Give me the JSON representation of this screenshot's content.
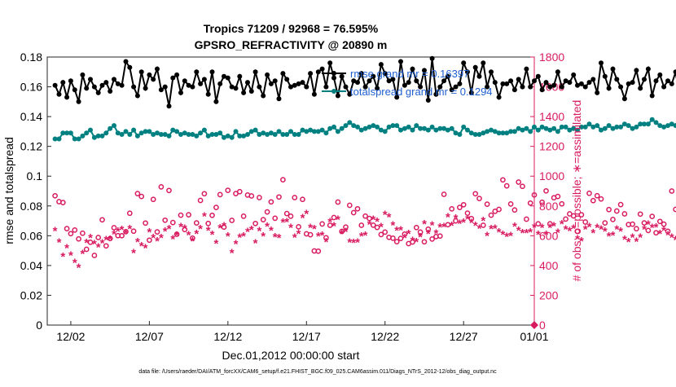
{
  "chart_data": {
    "type": "line",
    "title_line1": "Tropics 71209 / 92968 = 76.595%",
    "title_line2": "GPSRO_REFRACTIVITY @ 20890 m",
    "xlabel": "Dec.01,2012 00:00:00 start",
    "ylabel_left": "rmse and totalspread",
    "ylabel_right": "# of obs: o=possible; ∗=assimilated",
    "footer": "data file: /Users/raeder/DAI/ATM_forcXX/CAM6_setup/f.e21.FHIST_BGC.f09_025.CAM6assim.011/Diags_NTrS_2012-12/obs_diag_output.nc",
    "x_range": [
      0.5,
      31.5
    ],
    "x_ticks": [
      {
        "value": 2,
        "label": "12/02"
      },
      {
        "value": 7,
        "label": "12/07"
      },
      {
        "value": 12,
        "label": "12/12"
      },
      {
        "value": 17,
        "label": "12/17"
      },
      {
        "value": 22,
        "label": "12/22"
      },
      {
        "value": 27,
        "label": "12/27"
      },
      {
        "value": 32,
        "label": "01/01"
      }
    ],
    "y_left_range": [
      0,
      0.18
    ],
    "y_left_ticks": [
      "0",
      "0.02",
      "0.04",
      "0.06",
      "0.08",
      "0.1",
      "0.12",
      "0.14",
      "0.16",
      "0.18"
    ],
    "y_right_range": [
      0,
      1800
    ],
    "y_right_ticks": [
      "0",
      "200",
      "400",
      "600",
      "800",
      "1000",
      "1200",
      "1400",
      "1600",
      "1800"
    ],
    "legend": [
      {
        "label": "rmse grand mr = 0.16397",
        "color": "#000000"
      },
      {
        "label": "totalspread grand mr = 0.1294",
        "color": "#008080"
      }
    ],
    "colors": {
      "rmse": "#000000",
      "spread": "#008080",
      "obs": "#d81b60",
      "axes": "#262626"
    },
    "samples_per_day": 4,
    "rmse": [
      0.161,
      0.155,
      0.163,
      0.153,
      0.164,
      0.158,
      0.15,
      0.168,
      0.159,
      0.165,
      0.16,
      0.156,
      0.161,
      0.163,
      0.157,
      0.165,
      0.162,
      0.161,
      0.177,
      0.173,
      0.16,
      0.154,
      0.17,
      0.159,
      0.168,
      0.165,
      0.172,
      0.158,
      0.16,
      0.147,
      0.166,
      0.168,
      0.156,
      0.164,
      0.161,
      0.16,
      0.17,
      0.162,
      0.165,
      0.155,
      0.17,
      0.15,
      0.162,
      0.167,
      0.166,
      0.16,
      0.159,
      0.167,
      0.156,
      0.163,
      0.157,
      0.17,
      0.16,
      0.154,
      0.168,
      0.162,
      0.164,
      0.152,
      0.169,
      0.165,
      0.16,
      0.161,
      0.162,
      0.163,
      0.16,
      0.169,
      0.155,
      0.17,
      0.172,
      0.16,
      0.176,
      0.166,
      0.154,
      0.167,
      0.16,
      0.155,
      0.164,
      0.163,
      0.169,
      0.16,
      0.164,
      0.167,
      0.159,
      0.175,
      0.169,
      0.164,
      0.165,
      0.153,
      0.177,
      0.161,
      0.163,
      0.172,
      0.164,
      0.16,
      0.171,
      0.151,
      0.179,
      0.155,
      0.16,
      0.164,
      0.167,
      0.158,
      0.16,
      0.162,
      0.176,
      0.17,
      0.156,
      0.173,
      0.167,
      0.176,
      0.16,
      0.17,
      0.163,
      0.153,
      0.162,
      0.162,
      0.164,
      0.158,
      0.165,
      0.16,
      0.172,
      0.16,
      0.164,
      0.167,
      0.158,
      0.163,
      0.16,
      0.161,
      0.17,
      0.16,
      0.164,
      0.163,
      0.168,
      0.161,
      0.162,
      0.16,
      0.163,
      0.165,
      0.156,
      0.176,
      0.167,
      0.159,
      0.172,
      0.165,
      0.16,
      0.152,
      0.162,
      0.163,
      0.171,
      0.159,
      0.165,
      0.172,
      0.154,
      0.164,
      0.168,
      0.16,
      0.164,
      0.162,
      0.17,
      0.153,
      0.176,
      0.166,
      0.16,
      0.162,
      0.157,
      0.154,
      0.167,
      0.162,
      0.16,
      0.165,
      0.155,
      0.173,
      0.163,
      0.156,
      0.165,
      0.165,
      0.154,
      0.167,
      0.163,
      0.173,
      0.152,
      0.165,
      0.17,
      0.16,
      0.164,
      0.169,
      0.161,
      0.174,
      0.164,
      0.16,
      0.164,
      0.158,
      0.165,
      0.167,
      0.156,
      0.172,
      0.161,
      0.158,
      0.168,
      0.155,
      0.162,
      0.168,
      0.169,
      0.16,
      0.162,
      0.161,
      0.156,
      0.164,
      0.163,
      0.169,
      0.165,
      0.152,
      0.162,
      0.166,
      0.164,
      0.17,
      0.161,
      0.164,
      0.148,
      0.167,
      0.159,
      0.161,
      0.17,
      0.163,
      0.166,
      0.16,
      0.155,
      0.159,
      0.171,
      0.163,
      0.157,
      0.164,
      0.158,
      0.162,
      0.165,
      0.16,
      0.163,
      0.158,
      0.151,
      0.161,
      0.157,
      0.16,
      0.154,
      0.156,
      0.151
    ],
    "spread": [
      0.125,
      0.125,
      0.129,
      0.129,
      0.129,
      0.125,
      0.125,
      0.127,
      0.129,
      0.131,
      0.126,
      0.127,
      0.127,
      0.129,
      0.132,
      0.134,
      0.129,
      0.128,
      0.13,
      0.128,
      0.131,
      0.127,
      0.129,
      0.13,
      0.13,
      0.128,
      0.129,
      0.128,
      0.128,
      0.127,
      0.131,
      0.13,
      0.128,
      0.129,
      0.128,
      0.128,
      0.127,
      0.129,
      0.131,
      0.127,
      0.128,
      0.128,
      0.129,
      0.126,
      0.127,
      0.126,
      0.13,
      0.127,
      0.127,
      0.128,
      0.13,
      0.131,
      0.128,
      0.129,
      0.128,
      0.129,
      0.128,
      0.13,
      0.128,
      0.128,
      0.13,
      0.128,
      0.128,
      0.131,
      0.13,
      0.131,
      0.13,
      0.13,
      0.131,
      0.129,
      0.132,
      0.133,
      0.13,
      0.132,
      0.134,
      0.136,
      0.134,
      0.133,
      0.131,
      0.132,
      0.133,
      0.134,
      0.133,
      0.131,
      0.13,
      0.133,
      0.134,
      0.134,
      0.131,
      0.132,
      0.133,
      0.131,
      0.134,
      0.132,
      0.132,
      0.131,
      0.133,
      0.131,
      0.132,
      0.132,
      0.131,
      0.132,
      0.129,
      0.128,
      0.133,
      0.131,
      0.129,
      0.128,
      0.128,
      0.129,
      0.13,
      0.131,
      0.13,
      0.129,
      0.129,
      0.129,
      0.13,
      0.13,
      0.132,
      0.131,
      0.132,
      0.13,
      0.133,
      0.131,
      0.133,
      0.132,
      0.131,
      0.132,
      0.13,
      0.133,
      0.133,
      0.131,
      0.132,
      0.131,
      0.133,
      0.133,
      0.135,
      0.133,
      0.134,
      0.131,
      0.132,
      0.134,
      0.132,
      0.133,
      0.133,
      0.135,
      0.134,
      0.132,
      0.133,
      0.135,
      0.135,
      0.135,
      0.138,
      0.136,
      0.134,
      0.133,
      0.134,
      0.135,
      0.134,
      0.133,
      0.131,
      0.132,
      0.132,
      0.133,
      0.134,
      0.132,
      0.132,
      0.131,
      0.133,
      0.132,
      0.133,
      0.131,
      0.13,
      0.131,
      0.132,
      0.131,
      0.13,
      0.131,
      0.132,
      0.131,
      0.129,
      0.131,
      0.13,
      0.129,
      0.131,
      0.131,
      0.129,
      0.128,
      0.129,
      0.131,
      0.13,
      0.133,
      0.131,
      0.135,
      0.133,
      0.134,
      0.132,
      0.131,
      0.129,
      0.129,
      0.128,
      0.129,
      0.131,
      0.13,
      0.127,
      0.129,
      0.128,
      0.128,
      0.131,
      0.13,
      0.129,
      0.129,
      0.127,
      0.128,
      0.127,
      0.127,
      0.126,
      0.128,
      0.126,
      0.127,
      0.125,
      0.125,
      0.125,
      0.126,
      0.128,
      0.13,
      0.128,
      0.133,
      0.132,
      0.129,
      0.128,
      0.126,
      0.129,
      0.127,
      0.126,
      0.128,
      0.126,
      0.124,
      0.126,
      0.127,
      0.129,
      0.132,
      0.13,
      0.13,
      0.127,
      0.127,
      0.126,
      0.125
    ],
    "possible": [
      868,
      829,
      823,
      648,
      614,
      638,
      579,
      617,
      509,
      556,
      468,
      588,
      707,
      532,
      581,
      654,
      601,
      600,
      627,
      751,
      631,
      883,
      864,
      685,
      570,
      844,
      626,
      928,
      704,
      904,
      689,
      610,
      738,
      642,
      741,
      584,
      686,
      837,
      882,
      683,
      737,
      790,
      876,
      658,
      905,
      703,
      883,
      896,
      731,
      873,
      867,
      682,
      856,
      708,
      760,
      827,
      717,
      860,
      976,
      749,
      731,
      856,
      660,
      844,
      613,
      607,
      498,
      496,
      679,
      586,
      670,
      722,
      826,
      629,
      658,
      804,
      755,
      781,
      670,
      732,
      716,
      671,
      656,
      608,
      624,
      589,
      583,
      560,
      582,
      611,
      547,
      558,
      655,
      624,
      559,
      644,
      578,
      594,
      598,
      878,
      674,
      780,
      700,
      790,
      808,
      752,
      715,
      882,
      850,
      670,
      812,
      738,
      764,
      777,
      975,
      935,
      813,
      773,
      960,
      932,
      711,
      819,
      874,
      680,
      825,
      901,
      680,
      855,
      864,
      814,
      712,
      747,
      733,
      629,
      741,
      692,
      885,
      836,
      869,
      847,
      686,
      776,
      709,
      766,
      809,
      747,
      675,
      678,
      647,
      745,
      686,
      635,
      730,
      620,
      696,
      678,
      630,
      900,
      777,
      801,
      683,
      806,
      719,
      768,
      656,
      696,
      624,
      636,
      754,
      713,
      731,
      683,
      699,
      681,
      717,
      765,
      783,
      846,
      665,
      834,
      880,
      850,
      706,
      673,
      632,
      668,
      714,
      695,
      706,
      635,
      683,
      590,
      615,
      677,
      697,
      853,
      617,
      768,
      722,
      691,
      634,
      613,
      670,
      727,
      784,
      801,
      709,
      663,
      597,
      575,
      664,
      722,
      683,
      565,
      684,
      609,
      551,
      629,
      635,
      677,
      637,
      646,
      674,
      550,
      575,
      525,
      614,
      688,
      702,
      543,
      528,
      547
    ],
    "assimilated": [
      638,
      562,
      464,
      523,
      472,
      425,
      392,
      483,
      558,
      591,
      551,
      527,
      554,
      577,
      581,
      616,
      635,
      646,
      621,
      650,
      489,
      563,
      535,
      523,
      628,
      592,
      570,
      591,
      636,
      651,
      582,
      606,
      665,
      655,
      611,
      569,
      619,
      651,
      735,
      641,
      612,
      553,
      657,
      671,
      603,
      491,
      551,
      593,
      601,
      631,
      645,
      556,
      637,
      603,
      668,
      639,
      597,
      592,
      695,
      697,
      658,
      593,
      619,
      725,
      751,
      658,
      650,
      602,
      608,
      563,
      698,
      670,
      715,
      618,
      631,
      560,
      559,
      560,
      603,
      606,
      680,
      715,
      701,
      665,
      746,
      731,
      676,
      641,
      643,
      592,
      618,
      573,
      564,
      597,
      685,
      619,
      675,
      621,
      663,
      665,
      731,
      673,
      721,
      686,
      694,
      718,
      693,
      672,
      654,
      705,
      605,
      652,
      653,
      629,
      612,
      600,
      604,
      667,
      640,
      625,
      623,
      628,
      661,
      613,
      660,
      613,
      659,
      670,
      626,
      683,
      649,
      638,
      653,
      582,
      568,
      649,
      665,
      624,
      658,
      648,
      634,
      601,
      607,
      648,
      634,
      580,
      563,
      594,
      567,
      593,
      649,
      681,
      658,
      661,
      619,
      639,
      610,
      593,
      578,
      554,
      546,
      522,
      555,
      530,
      491,
      532,
      546,
      604,
      587,
      541,
      520,
      491,
      507,
      559,
      537,
      535,
      491,
      514,
      531,
      548,
      566,
      573,
      584,
      628,
      603,
      678,
      664,
      677,
      641,
      612,
      663,
      618,
      677,
      692,
      707,
      653,
      657,
      631,
      647,
      709,
      651,
      658,
      616,
      665,
      655,
      582,
      600,
      559,
      560,
      602,
      605,
      510,
      563,
      553,
      504,
      527,
      475,
      537,
      538,
      573,
      476,
      512,
      436,
      484,
      429,
      562,
      428,
      516,
      469,
      473,
      452,
      469,
      420,
      397,
      353,
      368,
      376
    ],
    "zero_marker": {
      "x": 31.5,
      "count": 0
    }
  }
}
